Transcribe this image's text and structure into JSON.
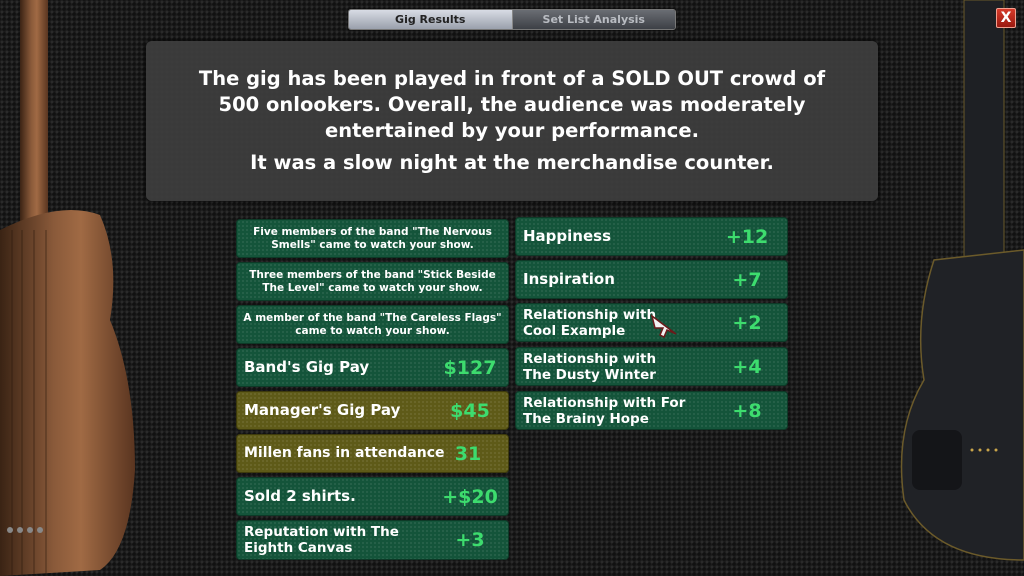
{
  "tabs": {
    "gig_results": "Gig Results",
    "set_list_analysis": "Set List Analysis"
  },
  "close_label": "X",
  "message": {
    "line1": "The gig has been played in front of a SOLD OUT crowd of 500 onlookers. Overall, the audience was moderately entertained by your performance.",
    "line2": "It was a slow night at the merchandise counter."
  },
  "left_column": [
    {
      "label": "Five members of the band \"The Nervous Smells\" came to watch your show.",
      "value": ""
    },
    {
      "label": "Three members of the band \"Stick Beside The Level\" came to watch your show.",
      "value": ""
    },
    {
      "label": "A member of the band \"The Careless Flags\" came to watch your show.",
      "value": ""
    },
    {
      "label": "Band's Gig Pay",
      "value": "$127"
    },
    {
      "label": "Manager's Gig Pay",
      "value": "$45"
    },
    {
      "label": "Millen fans in attendance",
      "value": "31"
    },
    {
      "label": "Sold 2 shirts.",
      "value": "+$20"
    },
    {
      "label": "Reputation with The Eighth Canvas",
      "value": "+3"
    }
  ],
  "right_column": [
    {
      "label": "Happiness",
      "value": "+12"
    },
    {
      "label": "Inspiration",
      "value": "+7"
    },
    {
      "label": "Relationship with Cool Example",
      "value": "+2"
    },
    {
      "label": "Relationship with The Dusty Winter",
      "value": "+4"
    },
    {
      "label": "Relationship with For The Brainy Hope",
      "value": "+8"
    }
  ],
  "colors": {
    "card_green": "#14543a",
    "card_olive": "#5e5a18",
    "value_green": "#3ddc6e",
    "close_red": "#c42c1e"
  },
  "icons": {
    "close": "close-icon",
    "cursor": "cursor-arrow-icon"
  }
}
